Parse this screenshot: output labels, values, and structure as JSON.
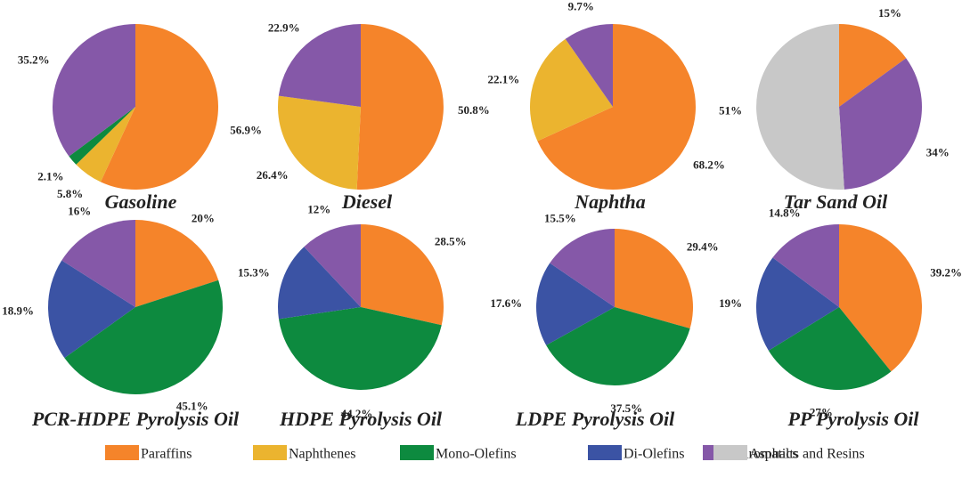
{
  "chart_data": {
    "type": "pie",
    "legend": {
      "placement": "bottom",
      "items": [
        {
          "key": "paraffins",
          "label": "Paraffins",
          "color": "#f5842a"
        },
        {
          "key": "naphthenes",
          "label": "Naphthenes",
          "color": "#ebb42f"
        },
        {
          "key": "mono_olefins",
          "label": "Mono-Olefins",
          "color": "#0d8a3f"
        },
        {
          "key": "di_olefins",
          "label": "Di-Olefins",
          "color": "#3b53a4"
        },
        {
          "key": "aromatics",
          "label": "Aromatics",
          "color": "#8558a8"
        },
        {
          "key": "asphalts_resins",
          "label": "Asphalts and Resins",
          "color": "#c8c8c8"
        }
      ]
    },
    "charts": [
      {
        "title": "Gasoline",
        "slices": [
          {
            "key": "paraffins",
            "value": 56.9,
            "label": "56.9%"
          },
          {
            "key": "naphthenes",
            "value": 5.8,
            "label": "5.8%"
          },
          {
            "key": "mono_olefins",
            "value": 2.1,
            "label": "2.1%"
          },
          {
            "key": "aromatics",
            "value": 35.2,
            "label": "35.2%"
          }
        ]
      },
      {
        "title": "Diesel",
        "slices": [
          {
            "key": "paraffins",
            "value": 50.8,
            "label": "50.8%"
          },
          {
            "key": "naphthenes",
            "value": 26.4,
            "label": "26.4%"
          },
          {
            "key": "aromatics",
            "value": 22.9,
            "label": "22.9%"
          }
        ]
      },
      {
        "title": "Naphtha",
        "slices": [
          {
            "key": "paraffins",
            "value": 68.2,
            "label": "68.2%"
          },
          {
            "key": "naphthenes",
            "value": 22.1,
            "label": "22.1%"
          },
          {
            "key": "aromatics",
            "value": 9.7,
            "label": "9.7%"
          }
        ]
      },
      {
        "title": "Tar Sand Oil",
        "slices": [
          {
            "key": "paraffins",
            "value": 15,
            "label": "15%"
          },
          {
            "key": "aromatics",
            "value": 34,
            "label": "34%"
          },
          {
            "key": "asphalts_resins",
            "value": 51,
            "label": "51%"
          }
        ]
      },
      {
        "title": "PCR-HDPE Pyrolysis Oil",
        "slices": [
          {
            "key": "paraffins",
            "value": 20,
            "label": "20%"
          },
          {
            "key": "mono_olefins",
            "value": 45.1,
            "label": "45.1%"
          },
          {
            "key": "di_olefins",
            "value": 18.9,
            "label": "18.9%"
          },
          {
            "key": "aromatics",
            "value": 16,
            "label": "16%"
          }
        ]
      },
      {
        "title": "HDPE Pyrolysis Oil",
        "slices": [
          {
            "key": "paraffins",
            "value": 28.5,
            "label": "28.5%"
          },
          {
            "key": "mono_olefins",
            "value": 44.2,
            "label": "44.2%"
          },
          {
            "key": "di_olefins",
            "value": 15.3,
            "label": "15.3%"
          },
          {
            "key": "aromatics",
            "value": 12,
            "label": "12%"
          }
        ]
      },
      {
        "title": "LDPE Pyrolysis Oil",
        "slices": [
          {
            "key": "paraffins",
            "value": 29.4,
            "label": "29.4%"
          },
          {
            "key": "mono_olefins",
            "value": 37.5,
            "label": "37.5%"
          },
          {
            "key": "di_olefins",
            "value": 17.6,
            "label": "17.6%"
          },
          {
            "key": "aromatics",
            "value": 15.5,
            "label": "15.5%"
          }
        ]
      },
      {
        "title": "PP Pyrolysis Oil",
        "slices": [
          {
            "key": "paraffins",
            "value": 39.2,
            "label": "39.2%"
          },
          {
            "key": "mono_olefins",
            "value": 27,
            "label": "27%"
          },
          {
            "key": "di_olefins",
            "value": 19,
            "label": "19%"
          },
          {
            "key": "aromatics",
            "value": 14.8,
            "label": "14.8%"
          }
        ]
      }
    ]
  }
}
